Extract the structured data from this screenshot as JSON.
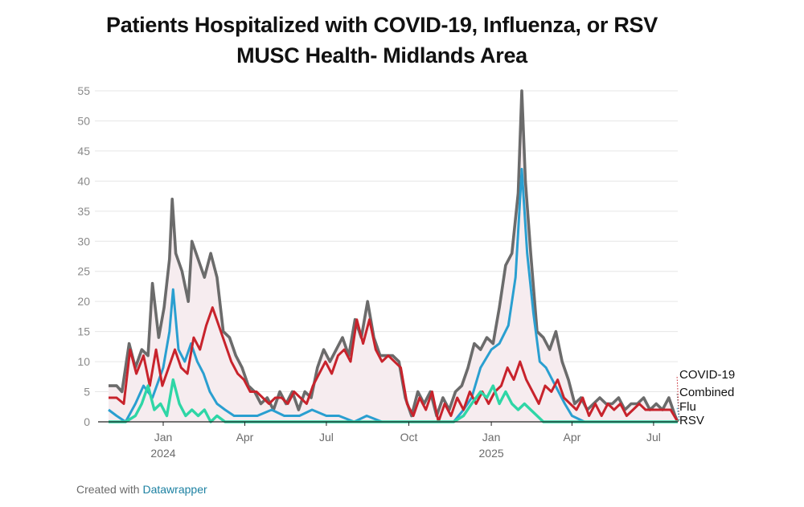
{
  "title": "Patients Hospitalized with COVID-19, Influenza, or RSV",
  "subtitle": "MUSC Health- Midlands Area",
  "footer": {
    "prefix": "Created with",
    "brand": "Datawrapper"
  },
  "colors": {
    "combined": "#6b6b6b",
    "flu": "#2a9fd0",
    "covid": "#c8232c",
    "rsv": "#2fd6a6",
    "area": "#f6ecef",
    "grid": "#e6e6e6",
    "axis": "#222222"
  },
  "chart_data": {
    "type": "line",
    "x_range": [
      "2023-11-01",
      "2025-07-28"
    ],
    "ylim": [
      0,
      55
    ],
    "yticks": [
      0,
      5,
      10,
      15,
      20,
      25,
      30,
      35,
      40,
      45,
      50,
      55
    ],
    "xticks": [
      {
        "date": "2024-01-01",
        "label": "Jan",
        "sub": "2024"
      },
      {
        "date": "2024-04-01",
        "label": "Apr",
        "sub": ""
      },
      {
        "date": "2024-07-01",
        "label": "Jul",
        "sub": ""
      },
      {
        "date": "2024-10-01",
        "label": "Oct",
        "sub": ""
      },
      {
        "date": "2025-01-01",
        "label": "Jan",
        "sub": "2025"
      },
      {
        "date": "2025-04-01",
        "label": "Apr",
        "sub": ""
      },
      {
        "date": "2025-07-01",
        "label": "Jul",
        "sub": ""
      }
    ],
    "series": [
      {
        "name": "Combined",
        "key": "combined",
        "points": [
          [
            "2023-11-01",
            6
          ],
          [
            "2023-11-10",
            6
          ],
          [
            "2023-11-16",
            5
          ],
          [
            "2023-11-24",
            13
          ],
          [
            "2023-12-01",
            9
          ],
          [
            "2023-12-08",
            12
          ],
          [
            "2023-12-15",
            11
          ],
          [
            "2023-12-20",
            23
          ],
          [
            "2023-12-27",
            14
          ],
          [
            "2024-01-02",
            19
          ],
          [
            "2024-01-08",
            27
          ],
          [
            "2024-01-11",
            37
          ],
          [
            "2024-01-15",
            28
          ],
          [
            "2024-01-22",
            25
          ],
          [
            "2024-01-29",
            20
          ],
          [
            "2024-02-02",
            30
          ],
          [
            "2024-02-09",
            27
          ],
          [
            "2024-02-16",
            24
          ],
          [
            "2024-02-23",
            28
          ],
          [
            "2024-03-01",
            24
          ],
          [
            "2024-03-08",
            15
          ],
          [
            "2024-03-15",
            14
          ],
          [
            "2024-03-22",
            11
          ],
          [
            "2024-03-29",
            9
          ],
          [
            "2024-04-05",
            6
          ],
          [
            "2024-04-12",
            5
          ],
          [
            "2024-04-19",
            3
          ],
          [
            "2024-04-26",
            4
          ],
          [
            "2024-05-03",
            2
          ],
          [
            "2024-05-10",
            5
          ],
          [
            "2024-05-17",
            3
          ],
          [
            "2024-05-24",
            5
          ],
          [
            "2024-05-31",
            2
          ],
          [
            "2024-06-07",
            5
          ],
          [
            "2024-06-14",
            4
          ],
          [
            "2024-06-21",
            9
          ],
          [
            "2024-06-28",
            12
          ],
          [
            "2024-07-05",
            10
          ],
          [
            "2024-07-12",
            12
          ],
          [
            "2024-07-19",
            14
          ],
          [
            "2024-07-26",
            11
          ],
          [
            "2024-08-02",
            17
          ],
          [
            "2024-08-09",
            14
          ],
          [
            "2024-08-16",
            20
          ],
          [
            "2024-08-23",
            14
          ],
          [
            "2024-08-30",
            11
          ],
          [
            "2024-09-06",
            11
          ],
          [
            "2024-09-13",
            11
          ],
          [
            "2024-09-20",
            10
          ],
          [
            "2024-09-27",
            4
          ],
          [
            "2024-10-04",
            1
          ],
          [
            "2024-10-11",
            5
          ],
          [
            "2024-10-18",
            3
          ],
          [
            "2024-10-25",
            5
          ],
          [
            "2024-11-01",
            1
          ],
          [
            "2024-11-08",
            4
          ],
          [
            "2024-11-15",
            2
          ],
          [
            "2024-11-22",
            5
          ],
          [
            "2024-11-29",
            6
          ],
          [
            "2024-12-06",
            9
          ],
          [
            "2024-12-13",
            13
          ],
          [
            "2024-12-20",
            12
          ],
          [
            "2024-12-27",
            14
          ],
          [
            "2025-01-03",
            13
          ],
          [
            "2025-01-10",
            19
          ],
          [
            "2025-01-17",
            26
          ],
          [
            "2025-01-24",
            28
          ],
          [
            "2025-01-31",
            38
          ],
          [
            "2025-02-04",
            55
          ],
          [
            "2025-02-08",
            40
          ],
          [
            "2025-02-14",
            28
          ],
          [
            "2025-02-21",
            15
          ],
          [
            "2025-02-28",
            14
          ],
          [
            "2025-03-07",
            12
          ],
          [
            "2025-03-14",
            15
          ],
          [
            "2025-03-21",
            10
          ],
          [
            "2025-03-28",
            7
          ],
          [
            "2025-04-04",
            3
          ],
          [
            "2025-04-11",
            4
          ],
          [
            "2025-04-18",
            2
          ],
          [
            "2025-04-25",
            3
          ],
          [
            "2025-05-02",
            4
          ],
          [
            "2025-05-09",
            3
          ],
          [
            "2025-05-16",
            3
          ],
          [
            "2025-05-23",
            4
          ],
          [
            "2025-05-30",
            2
          ],
          [
            "2025-06-06",
            3
          ],
          [
            "2025-06-13",
            3
          ],
          [
            "2025-06-20",
            4
          ],
          [
            "2025-06-27",
            2
          ],
          [
            "2025-07-04",
            3
          ],
          [
            "2025-07-11",
            2
          ],
          [
            "2025-07-18",
            4
          ],
          [
            "2025-07-25",
            1
          ],
          [
            "2025-07-28",
            0
          ]
        ]
      },
      {
        "name": "Flu",
        "key": "flu",
        "points": [
          [
            "2023-11-01",
            2
          ],
          [
            "2023-11-10",
            1
          ],
          [
            "2023-11-20",
            0
          ],
          [
            "2023-12-01",
            3
          ],
          [
            "2023-12-10",
            6
          ],
          [
            "2023-12-20",
            4
          ],
          [
            "2024-01-01",
            9
          ],
          [
            "2024-01-08",
            15
          ],
          [
            "2024-01-12",
            22
          ],
          [
            "2024-01-18",
            12
          ],
          [
            "2024-01-25",
            10
          ],
          [
            "2024-02-01",
            13
          ],
          [
            "2024-02-08",
            10
          ],
          [
            "2024-02-15",
            8
          ],
          [
            "2024-02-22",
            5
          ],
          [
            "2024-03-01",
            3
          ],
          [
            "2024-03-10",
            2
          ],
          [
            "2024-03-20",
            1
          ],
          [
            "2024-04-01",
            1
          ],
          [
            "2024-04-15",
            1
          ],
          [
            "2024-05-01",
            2
          ],
          [
            "2024-05-15",
            1
          ],
          [
            "2024-06-01",
            1
          ],
          [
            "2024-06-15",
            2
          ],
          [
            "2024-07-01",
            1
          ],
          [
            "2024-07-15",
            1
          ],
          [
            "2024-08-01",
            0
          ],
          [
            "2024-08-15",
            1
          ],
          [
            "2024-09-01",
            0
          ],
          [
            "2024-10-01",
            0
          ],
          [
            "2024-11-01",
            0
          ],
          [
            "2024-11-20",
            0
          ],
          [
            "2024-12-01",
            2
          ],
          [
            "2024-12-10",
            4
          ],
          [
            "2024-12-20",
            9
          ],
          [
            "2025-01-01",
            12
          ],
          [
            "2025-01-10",
            13
          ],
          [
            "2025-01-20",
            16
          ],
          [
            "2025-01-28",
            24
          ],
          [
            "2025-02-04",
            42
          ],
          [
            "2025-02-10",
            28
          ],
          [
            "2025-02-17",
            18
          ],
          [
            "2025-02-24",
            10
          ],
          [
            "2025-03-03",
            9
          ],
          [
            "2025-03-10",
            7
          ],
          [
            "2025-03-17",
            5
          ],
          [
            "2025-03-24",
            3
          ],
          [
            "2025-04-01",
            1
          ],
          [
            "2025-04-15",
            0
          ],
          [
            "2025-05-01",
            0
          ],
          [
            "2025-06-01",
            0
          ],
          [
            "2025-07-28",
            0
          ]
        ]
      },
      {
        "name": "COVID-19",
        "key": "covid",
        "points": [
          [
            "2023-11-01",
            4
          ],
          [
            "2023-11-10",
            4
          ],
          [
            "2023-11-18",
            3
          ],
          [
            "2023-11-25",
            12
          ],
          [
            "2023-12-02",
            8
          ],
          [
            "2023-12-10",
            11
          ],
          [
            "2023-12-17",
            6
          ],
          [
            "2023-12-24",
            12
          ],
          [
            "2023-12-31",
            6
          ],
          [
            "2024-01-07",
            9
          ],
          [
            "2024-01-14",
            12
          ],
          [
            "2024-01-21",
            9
          ],
          [
            "2024-01-28",
            8
          ],
          [
            "2024-02-04",
            14
          ],
          [
            "2024-02-11",
            12
          ],
          [
            "2024-02-18",
            16
          ],
          [
            "2024-02-25",
            19
          ],
          [
            "2024-03-03",
            16
          ],
          [
            "2024-03-10",
            13
          ],
          [
            "2024-03-17",
            10
          ],
          [
            "2024-03-24",
            8
          ],
          [
            "2024-03-31",
            7
          ],
          [
            "2024-04-07",
            5
          ],
          [
            "2024-04-14",
            5
          ],
          [
            "2024-04-21",
            4
          ],
          [
            "2024-04-28",
            3
          ],
          [
            "2024-05-05",
            4
          ],
          [
            "2024-05-12",
            4
          ],
          [
            "2024-05-19",
            3
          ],
          [
            "2024-05-26",
            5
          ],
          [
            "2024-06-02",
            4
          ],
          [
            "2024-06-09",
            3
          ],
          [
            "2024-06-16",
            6
          ],
          [
            "2024-06-23",
            8
          ],
          [
            "2024-06-30",
            10
          ],
          [
            "2024-07-07",
            8
          ],
          [
            "2024-07-14",
            11
          ],
          [
            "2024-07-21",
            12
          ],
          [
            "2024-07-28",
            10
          ],
          [
            "2024-08-04",
            17
          ],
          [
            "2024-08-11",
            13
          ],
          [
            "2024-08-18",
            17
          ],
          [
            "2024-08-25",
            12
          ],
          [
            "2024-09-01",
            10
          ],
          [
            "2024-09-08",
            11
          ],
          [
            "2024-09-15",
            10
          ],
          [
            "2024-09-22",
            9
          ],
          [
            "2024-09-29",
            3
          ],
          [
            "2024-10-06",
            1
          ],
          [
            "2024-10-13",
            4
          ],
          [
            "2024-10-20",
            2
          ],
          [
            "2024-10-27",
            5
          ],
          [
            "2024-11-03",
            0
          ],
          [
            "2024-11-10",
            3
          ],
          [
            "2024-11-17",
            1
          ],
          [
            "2024-11-24",
            4
          ],
          [
            "2024-12-01",
            2
          ],
          [
            "2024-12-08",
            5
          ],
          [
            "2024-12-15",
            3
          ],
          [
            "2024-12-22",
            5
          ],
          [
            "2024-12-29",
            3
          ],
          [
            "2025-01-05",
            5
          ],
          [
            "2025-01-12",
            6
          ],
          [
            "2025-01-19",
            9
          ],
          [
            "2025-01-26",
            7
          ],
          [
            "2025-02-02",
            10
          ],
          [
            "2025-02-09",
            7
          ],
          [
            "2025-02-16",
            5
          ],
          [
            "2025-02-23",
            3
          ],
          [
            "2025-03-02",
            6
          ],
          [
            "2025-03-09",
            5
          ],
          [
            "2025-03-16",
            7
          ],
          [
            "2025-03-23",
            4
          ],
          [
            "2025-03-30",
            3
          ],
          [
            "2025-04-06",
            2
          ],
          [
            "2025-04-13",
            4
          ],
          [
            "2025-04-20",
            1
          ],
          [
            "2025-04-27",
            3
          ],
          [
            "2025-05-04",
            1
          ],
          [
            "2025-05-11",
            3
          ],
          [
            "2025-05-18",
            2
          ],
          [
            "2025-05-25",
            3
          ],
          [
            "2025-06-01",
            1
          ],
          [
            "2025-06-08",
            2
          ],
          [
            "2025-06-15",
            3
          ],
          [
            "2025-06-22",
            2
          ],
          [
            "2025-06-29",
            2
          ],
          [
            "2025-07-06",
            2
          ],
          [
            "2025-07-13",
            2
          ],
          [
            "2025-07-20",
            2
          ],
          [
            "2025-07-28",
            0
          ]
        ]
      },
      {
        "name": "RSV",
        "key": "rsv",
        "points": [
          [
            "2023-11-01",
            0
          ],
          [
            "2023-11-20",
            0
          ],
          [
            "2023-12-01",
            1
          ],
          [
            "2023-12-08",
            3
          ],
          [
            "2023-12-15",
            6
          ],
          [
            "2023-12-22",
            2
          ],
          [
            "2023-12-29",
            3
          ],
          [
            "2024-01-05",
            1
          ],
          [
            "2024-01-12",
            7
          ],
          [
            "2024-01-19",
            3
          ],
          [
            "2024-01-26",
            1
          ],
          [
            "2024-02-02",
            2
          ],
          [
            "2024-02-09",
            1
          ],
          [
            "2024-02-16",
            2
          ],
          [
            "2024-02-23",
            0
          ],
          [
            "2024-03-01",
            1
          ],
          [
            "2024-03-10",
            0
          ],
          [
            "2024-04-01",
            0
          ],
          [
            "2024-11-20",
            0
          ],
          [
            "2024-12-01",
            1
          ],
          [
            "2024-12-10",
            3
          ],
          [
            "2024-12-20",
            5
          ],
          [
            "2024-12-27",
            4
          ],
          [
            "2025-01-03",
            6
          ],
          [
            "2025-01-10",
            3
          ],
          [
            "2025-01-17",
            5
          ],
          [
            "2025-01-24",
            3
          ],
          [
            "2025-01-31",
            2
          ],
          [
            "2025-02-07",
            3
          ],
          [
            "2025-02-14",
            2
          ],
          [
            "2025-02-21",
            1
          ],
          [
            "2025-02-28",
            0
          ],
          [
            "2025-03-10",
            0
          ],
          [
            "2025-07-28",
            0
          ]
        ]
      }
    ],
    "labels": [
      {
        "series": "covid",
        "text": "COVID-19",
        "value": 0
      },
      {
        "series": "combined",
        "text": "Combined",
        "value": 0
      },
      {
        "series": "flu",
        "text": "Flu",
        "value": 0
      },
      {
        "series": "rsv",
        "text": "RSV",
        "value": 0
      }
    ]
  }
}
